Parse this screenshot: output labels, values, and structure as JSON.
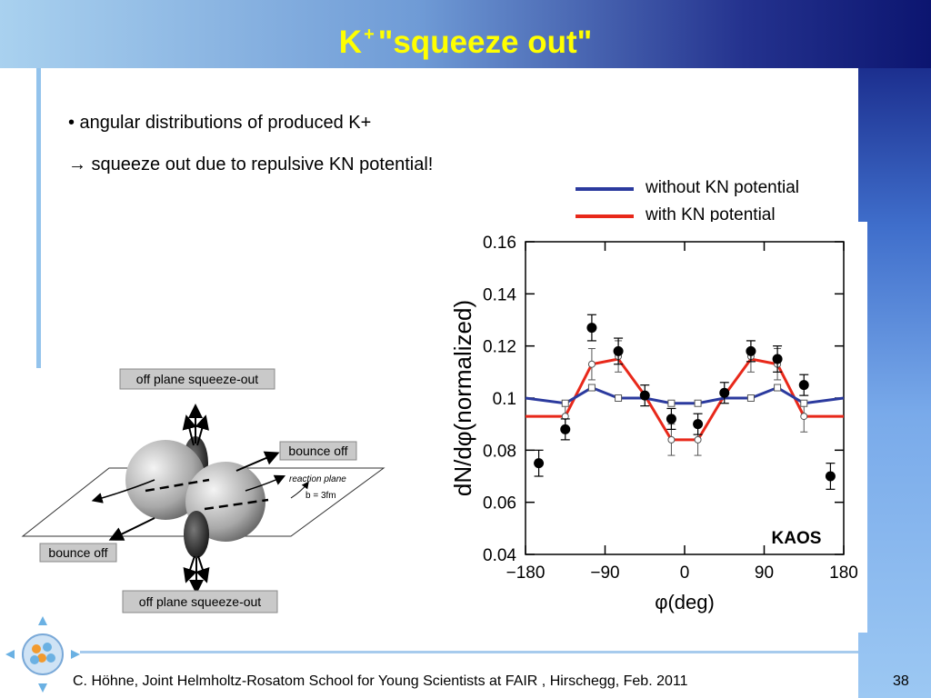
{
  "slide": {
    "title_main": "K",
    "title_sup": "+",
    "title_rest": "\"squeeze out\"",
    "bullets": [
      "• angular distributions of produced K+",
      "→ squeeze out due to repulsive KN potential!"
    ],
    "footer": "C. Höhne,   Joint Helmholtz-Rosatom School for Young Scientists at FAIR , Hirschegg, Feb. 2011",
    "page_number": "38"
  },
  "legend": {
    "items": [
      {
        "label": "without KN potential",
        "color": "#2b3a9e"
      },
      {
        "label": "with KN potential",
        "color": "#e8281a"
      }
    ]
  },
  "diagram": {
    "labels": {
      "off_plane_top": "off plane squeeze-out",
      "bounce_right": "bounce off",
      "bounce_left": "bounce off",
      "off_plane_bottom": "off plane squeeze-out",
      "reaction_plane": "reaction plane",
      "impact": "b = 3fm"
    }
  },
  "chart_data": {
    "type": "scatter",
    "title": "",
    "xlabel": "φ(deg)",
    "ylabel": "dN/dφ(normalized)",
    "xlim": [
      -180,
      180
    ],
    "ylim": [
      0.04,
      0.16
    ],
    "xticks": [
      -180,
      -90,
      0,
      90,
      180
    ],
    "xtick_labels": [
      "−180",
      "−90",
      "0",
      "90",
      "180"
    ],
    "yticks": [
      0.04,
      0.06,
      0.08,
      0.1,
      0.12,
      0.14,
      0.16
    ],
    "ytick_labels": [
      "0.04",
      "0.06",
      "0.08",
      "0.1",
      "0.12",
      "0.14",
      "0.16"
    ],
    "annotation": "KAOS",
    "series": [
      {
        "name": "KAOS",
        "kind": "data",
        "x": [
          -165,
          -135,
          -105,
          -75,
          -45,
          -15,
          15,
          45,
          75,
          105,
          135,
          165
        ],
        "y": [
          0.075,
          0.088,
          0.127,
          0.118,
          0.101,
          0.092,
          0.09,
          0.102,
          0.118,
          0.115,
          0.105,
          0.07
        ],
        "err": [
          0.005,
          0.004,
          0.005,
          0.005,
          0.004,
          0.004,
          0.004,
          0.004,
          0.004,
          0.005,
          0.004,
          0.005
        ]
      },
      {
        "name": "with KN potential",
        "kind": "model",
        "color": "#e8281a",
        "x": [
          -180,
          -135,
          -105,
          -75,
          -45,
          -15,
          15,
          45,
          75,
          105,
          135,
          180
        ],
        "y": [
          0.093,
          0.093,
          0.113,
          0.115,
          0.101,
          0.084,
          0.084,
          0.101,
          0.115,
          0.113,
          0.093,
          0.093
        ],
        "markers_x": [
          -135,
          -105,
          -75,
          -15,
          15,
          75,
          105,
          135
        ],
        "markers_y": [
          0.093,
          0.113,
          0.116,
          0.084,
          0.084,
          0.116,
          0.113,
          0.093
        ],
        "marker_err": [
          0.006,
          0.006,
          0.006,
          0.006,
          0.006,
          0.006,
          0.006,
          0.006
        ]
      },
      {
        "name": "without KN potential",
        "kind": "model",
        "color": "#2b3a9e",
        "x": [
          -180,
          -135,
          -105,
          -75,
          -45,
          -15,
          15,
          45,
          75,
          105,
          135,
          180
        ],
        "y": [
          0.1,
          0.098,
          0.104,
          0.1,
          0.1,
          0.098,
          0.098,
          0.1,
          0.1,
          0.104,
          0.098,
          0.1
        ],
        "markers_x": [
          -135,
          -105,
          -75,
          -15,
          15,
          75,
          105,
          135
        ],
        "markers_y": [
          0.098,
          0.104,
          0.1,
          0.098,
          0.098,
          0.1,
          0.104,
          0.098
        ]
      }
    ]
  }
}
